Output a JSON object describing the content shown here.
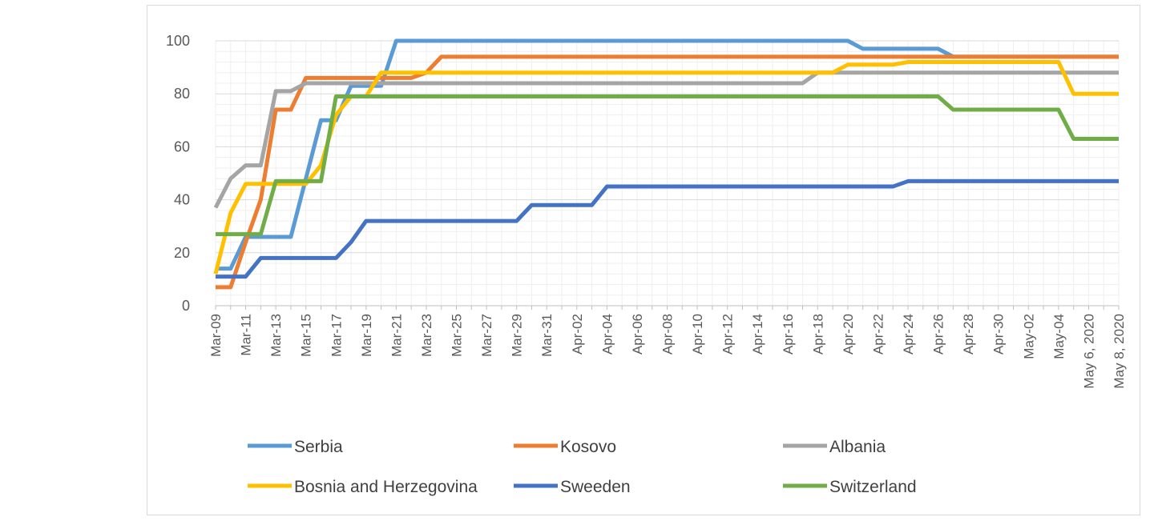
{
  "chart_data": {
    "type": "line",
    "title": "",
    "xlabel": "",
    "ylabel": "",
    "ylim": [
      0,
      100
    ],
    "yticks": [
      0,
      20,
      40,
      60,
      80,
      100
    ],
    "grid": true,
    "legend_position": "bottom",
    "tick_labels": [
      "Mar-09",
      "Mar-11",
      "Mar-13",
      "Mar-15",
      "Mar-17",
      "Mar-19",
      "Mar-21",
      "Mar-23",
      "Mar-25",
      "Mar-27",
      "Mar-29",
      "Mar-31",
      "Apr-02",
      "Apr-04",
      "Apr-06",
      "Apr-08",
      "Apr-10",
      "Apr-12",
      "Apr-14",
      "Apr-16",
      "Apr-18",
      "Apr-20",
      "Apr-22",
      "Apr-24",
      "Apr-26",
      "Apr-28",
      "Apr-30",
      "May-02",
      "May-04",
      "May 6, 2020",
      "May 8, 2020"
    ],
    "x": [
      "Mar-09",
      "Mar-10",
      "Mar-11",
      "Mar-12",
      "Mar-13",
      "Mar-14",
      "Mar-15",
      "Mar-16",
      "Mar-17",
      "Mar-18",
      "Mar-19",
      "Mar-20",
      "Mar-21",
      "Mar-22",
      "Mar-23",
      "Mar-24",
      "Mar-25",
      "Mar-26",
      "Mar-27",
      "Mar-28",
      "Mar-29",
      "Mar-30",
      "Mar-31",
      "Apr-01",
      "Apr-02",
      "Apr-03",
      "Apr-04",
      "Apr-05",
      "Apr-06",
      "Apr-07",
      "Apr-08",
      "Apr-09",
      "Apr-10",
      "Apr-11",
      "Apr-12",
      "Apr-13",
      "Apr-14",
      "Apr-15",
      "Apr-16",
      "Apr-17",
      "Apr-18",
      "Apr-19",
      "Apr-20",
      "Apr-21",
      "Apr-22",
      "Apr-23",
      "Apr-24",
      "Apr-25",
      "Apr-26",
      "Apr-27",
      "Apr-28",
      "Apr-29",
      "Apr-30",
      "May-01",
      "May-02",
      "May-03",
      "May-04",
      "May 5, 2020",
      "May 6, 2020",
      "May 7, 2020",
      "May 8, 2020"
    ],
    "series": [
      {
        "name": "Serbia",
        "color": "#5b9bd5",
        "values": [
          14,
          14,
          26,
          26,
          26,
          26,
          48,
          70,
          70,
          83,
          83,
          83,
          100,
          100,
          100,
          100,
          100,
          100,
          100,
          100,
          100,
          100,
          100,
          100,
          100,
          100,
          100,
          100,
          100,
          100,
          100,
          100,
          100,
          100,
          100,
          100,
          100,
          100,
          100,
          100,
          100,
          100,
          100,
          97,
          97,
          97,
          97,
          97,
          97,
          94,
          94,
          94,
          94,
          94,
          94,
          94,
          94,
          94,
          94,
          94,
          94
        ]
      },
      {
        "name": "Kosovo",
        "color": "#ed7d31",
        "values": [
          7,
          7,
          24,
          40,
          74,
          74,
          86,
          86,
          86,
          86,
          86,
          86,
          86,
          86,
          88,
          94,
          94,
          94,
          94,
          94,
          94,
          94,
          94,
          94,
          94,
          94,
          94,
          94,
          94,
          94,
          94,
          94,
          94,
          94,
          94,
          94,
          94,
          94,
          94,
          94,
          94,
          94,
          94,
          94,
          94,
          94,
          94,
          94,
          94,
          94,
          94,
          94,
          94,
          94,
          94,
          94,
          94,
          94,
          94,
          94,
          94
        ]
      },
      {
        "name": "Albania",
        "color": "#a5a5a5",
        "values": [
          37,
          48,
          53,
          53,
          81,
          81,
          84,
          84,
          84,
          84,
          84,
          84,
          84,
          84,
          84,
          84,
          84,
          84,
          84,
          84,
          84,
          84,
          84,
          84,
          84,
          84,
          84,
          84,
          84,
          84,
          84,
          84,
          84,
          84,
          84,
          84,
          84,
          84,
          84,
          84,
          88,
          88,
          88,
          88,
          88,
          88,
          88,
          88,
          88,
          88,
          88,
          88,
          88,
          88,
          88,
          88,
          88,
          88,
          88,
          88,
          88
        ]
      },
      {
        "name": "Bosnia and Herzegovina",
        "color": "#ffc000",
        "values": [
          12,
          35,
          46,
          46,
          46,
          46,
          46,
          53,
          72,
          79,
          79,
          88,
          88,
          88,
          88,
          88,
          88,
          88,
          88,
          88,
          88,
          88,
          88,
          88,
          88,
          88,
          88,
          88,
          88,
          88,
          88,
          88,
          88,
          88,
          88,
          88,
          88,
          88,
          88,
          88,
          88,
          88,
          91,
          91,
          91,
          91,
          92,
          92,
          92,
          92,
          92,
          92,
          92,
          92,
          92,
          92,
          92,
          80,
          80,
          80,
          80
        ]
      },
      {
        "name": "Sweeden",
        "color": "#4472c4",
        "values": [
          11,
          11,
          11,
          18,
          18,
          18,
          18,
          18,
          18,
          24,
          32,
          32,
          32,
          32,
          32,
          32,
          32,
          32,
          32,
          32,
          32,
          38,
          38,
          38,
          38,
          38,
          45,
          45,
          45,
          45,
          45,
          45,
          45,
          45,
          45,
          45,
          45,
          45,
          45,
          45,
          45,
          45,
          45,
          45,
          45,
          45,
          47,
          47,
          47,
          47,
          47,
          47,
          47,
          47,
          47,
          47,
          47,
          47,
          47,
          47,
          47
        ]
      },
      {
        "name": "Switzerland",
        "color": "#70ad47",
        "values": [
          27,
          27,
          27,
          27,
          47,
          47,
          47,
          47,
          79,
          79,
          79,
          79,
          79,
          79,
          79,
          79,
          79,
          79,
          79,
          79,
          79,
          79,
          79,
          79,
          79,
          79,
          79,
          79,
          79,
          79,
          79,
          79,
          79,
          79,
          79,
          79,
          79,
          79,
          79,
          79,
          79,
          79,
          79,
          79,
          79,
          79,
          79,
          79,
          79,
          74,
          74,
          74,
          74,
          74,
          74,
          74,
          74,
          63,
          63,
          63,
          63
        ]
      }
    ]
  }
}
